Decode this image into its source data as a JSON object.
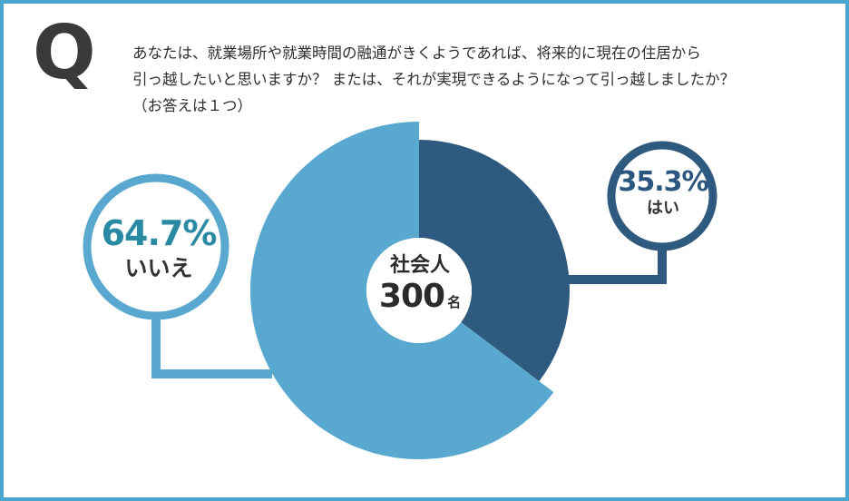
{
  "question": {
    "mark": "Q",
    "lines": [
      "あなたは、就業場所や就業時間の融通がきくようであれば、将来的に現在の住居から",
      "引っ越したいと思いますか？ または、それが実現できるようになって引っ越しましたか？",
      "（お答えは１つ）"
    ]
  },
  "center": {
    "group": "社会人",
    "count": "300",
    "unit": "名"
  },
  "chart_data": {
    "type": "pie",
    "categories": [
      "はい",
      "いいえ"
    ],
    "values": [
      35.3,
      64.7
    ],
    "value_labels": [
      "35.3%",
      "いいえ"
    ],
    "percent_labels": [
      "35.3%",
      "64.7%"
    ],
    "colors": [
      "#2e5a7f",
      "#58a8d0"
    ],
    "donut": true,
    "start": "top, clockwise"
  },
  "colors": {
    "frame": "#4ba3cf",
    "yes": "#2e5a7f",
    "no": "#58a8d0",
    "yes_text": "#2a5680",
    "no_text": "#2a8aa4"
  }
}
